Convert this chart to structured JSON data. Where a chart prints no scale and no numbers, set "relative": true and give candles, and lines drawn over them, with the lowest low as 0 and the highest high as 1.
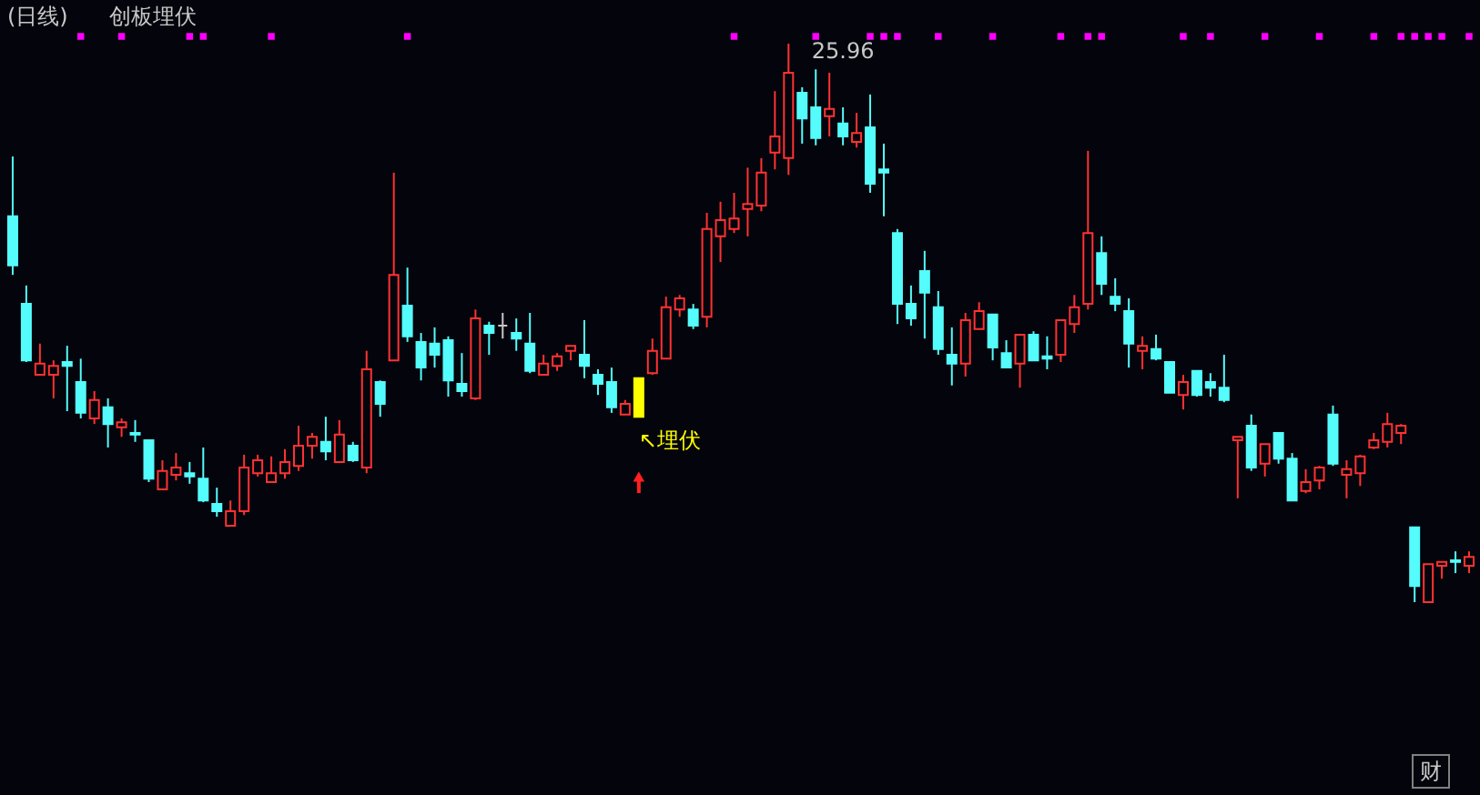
{
  "chart_data": {
    "type": "candlestick",
    "title": "(日线)",
    "subtitle": "创板埋伏",
    "relative": true,
    "categories": [
      null,
      null,
      null,
      null,
      null,
      null,
      null,
      null,
      null,
      null,
      null,
      null,
      null,
      null,
      null,
      null,
      null,
      null,
      null,
      null,
      null,
      null,
      null,
      null,
      null,
      null,
      null,
      null,
      null,
      null,
      null,
      null,
      null,
      null,
      null,
      null,
      null,
      null,
      null,
      null,
      null,
      null,
      null,
      null,
      null,
      null,
      null,
      null,
      null,
      null,
      null,
      null,
      null,
      null,
      null,
      null,
      null,
      null,
      null,
      null,
      null,
      null,
      null,
      null,
      null,
      null,
      null,
      null,
      null,
      null,
      null,
      null,
      null,
      null,
      null,
      null,
      null,
      null,
      null,
      null,
      null,
      null,
      null,
      null,
      null,
      null,
      null,
      null,
      null,
      null,
      null,
      null,
      null,
      null,
      null,
      null,
      null,
      null,
      null,
      null,
      null,
      null,
      null,
      null,
      null,
      null,
      null,
      null
    ],
    "ohlc": [
      [
        0.691,
        0.798,
        0.586,
        0.603
      ],
      [
        0.534,
        0.567,
        0.43,
        0.433
      ],
      [
        0.407,
        0.463,
        0.407,
        0.427
      ],
      [
        0.407,
        0.433,
        0.365,
        0.423
      ],
      [
        0.43,
        0.459,
        0.342,
        0.423
      ],
      [
        0.394,
        0.436,
        0.329,
        0.339
      ],
      [
        0.329,
        0.378,
        0.319,
        0.362
      ],
      [
        0.349,
        0.365,
        0.277,
        0.319
      ],
      [
        0.313,
        0.329,
        0.296,
        0.322
      ],
      [
        0.303,
        0.326,
        0.287,
        0.3
      ],
      [
        0.29,
        0.29,
        0.215,
        0.221
      ],
      [
        0.202,
        0.254,
        0.202,
        0.235
      ],
      [
        0.228,
        0.267,
        0.218,
        0.241
      ],
      [
        0.231,
        0.251,
        0.212,
        0.225
      ],
      [
        0.221,
        0.277,
        0.179,
        0.182
      ],
      [
        0.176,
        0.205,
        0.153,
        0.163
      ],
      [
        0.137,
        0.182,
        0.137,
        0.163
      ],
      [
        0.163,
        0.264,
        0.156,
        0.241
      ],
      [
        0.231,
        0.264,
        0.225,
        0.254
      ],
      [
        0.215,
        0.261,
        0.215,
        0.231
      ],
      [
        0.231,
        0.274,
        0.221,
        0.251
      ],
      [
        0.244,
        0.316,
        0.235,
        0.28
      ],
      [
        0.28,
        0.303,
        0.257,
        0.296
      ],
      [
        0.287,
        0.332,
        0.254,
        0.27
      ],
      [
        0.251,
        0.326,
        0.251,
        0.3
      ],
      [
        0.28,
        0.287,
        0.251,
        0.254
      ],
      [
        0.241,
        0.45,
        0.231,
        0.417
      ],
      [
        0.394,
        0.397,
        0.332,
        0.355
      ],
      [
        0.433,
        0.769,
        0.433,
        0.586
      ],
      [
        0.531,
        0.599,
        0.466,
        0.476
      ],
      [
        0.466,
        0.482,
        0.397,
        0.42
      ],
      [
        0.463,
        0.492,
        0.42,
        0.443
      ],
      [
        0.469,
        0.476,
        0.368,
        0.397
      ],
      [
        0.391,
        0.446,
        0.368,
        0.378
      ],
      [
        0.365,
        0.524,
        0.362,
        0.508
      ],
      [
        0.495,
        0.502,
        0.443,
        0.482
      ],
      [
        0.495,
        0.518,
        0.472,
        0.495
      ],
      [
        0.482,
        0.508,
        0.45,
        0.472
      ],
      [
        0.463,
        0.518,
        0.41,
        0.414
      ],
      [
        0.407,
        0.443,
        0.407,
        0.427
      ],
      [
        0.423,
        0.446,
        0.414,
        0.44
      ],
      [
        0.45,
        0.459,
        0.433,
        0.459
      ],
      [
        0.443,
        0.505,
        0.401,
        0.423
      ],
      [
        0.407,
        0.417,
        0.371,
        0.391
      ],
      [
        0.394,
        0.42,
        0.339,
        0.349
      ],
      [
        0.336,
        0.362,
        0.336,
        0.355
      ],
      [
        0.401,
        0.401,
        0.332,
        0.332
      ],
      [
        0.41,
        0.472,
        0.407,
        0.45
      ],
      [
        0.436,
        0.547,
        0.436,
        0.528
      ],
      [
        0.524,
        0.55,
        0.511,
        0.544
      ],
      [
        0.524,
        0.534,
        0.489,
        0.495
      ],
      [
        0.511,
        0.697,
        0.492,
        0.668
      ],
      [
        0.655,
        0.717,
        0.609,
        0.684
      ],
      [
        0.668,
        0.733,
        0.661,
        0.687
      ],
      [
        0.704,
        0.778,
        0.655,
        0.713
      ],
      [
        0.71,
        0.795,
        0.7,
        0.769
      ],
      [
        0.805,
        0.915,
        0.775,
        0.834
      ],
      [
        0.795,
        1,
        0.765,
        0.948
      ],
      [
        0.912,
        0.922,
        0.821,
        0.866
      ],
      [
        0.886,
        0.954,
        0.818,
        0.831
      ],
      [
        0.87,
        0.948,
        0.834,
        0.883
      ],
      [
        0.857,
        0.886,
        0.818,
        0.834
      ],
      [
        0.824,
        0.876,
        0.814,
        0.84
      ],
      [
        0.85,
        0.909,
        0.733,
        0.749
      ],
      [
        0.775,
        0.821,
        0.691,
        0.769
      ],
      [
        0.661,
        0.668,
        0.498,
        0.534
      ],
      [
        0.534,
        0.567,
        0.495,
        0.508
      ],
      [
        0.593,
        0.629,
        0.472,
        0.554
      ],
      [
        0.528,
        0.557,
        0.443,
        0.453
      ],
      [
        0.443,
        0.492,
        0.388,
        0.427
      ],
      [
        0.427,
        0.518,
        0.404,
        0.505
      ],
      [
        0.489,
        0.537,
        0.489,
        0.521
      ],
      [
        0.515,
        0.515,
        0.433,
        0.456
      ],
      [
        0.446,
        0.469,
        0.42,
        0.42
      ],
      [
        0.427,
        0.479,
        0.384,
        0.479
      ],
      [
        0.479,
        0.485,
        0.433,
        0.433
      ],
      [
        0.44,
        0.476,
        0.417,
        0.436
      ],
      [
        0.443,
        0.505,
        0.43,
        0.505
      ],
      [
        0.498,
        0.55,
        0.482,
        0.528
      ],
      [
        0.534,
        0.808,
        0.524,
        0.661
      ],
      [
        0.625,
        0.655,
        0.55,
        0.57
      ],
      [
        0.547,
        0.58,
        0.521,
        0.534
      ],
      [
        0.521,
        0.544,
        0.42,
        0.463
      ],
      [
        0.45,
        0.476,
        0.417,
        0.459
      ],
      [
        0.453,
        0.479,
        0.433,
        0.436
      ],
      [
        0.43,
        0.43,
        0.375,
        0.375
      ],
      [
        0.371,
        0.407,
        0.345,
        0.394
      ],
      [
        0.414,
        0.414,
        0.368,
        0.371
      ],
      [
        0.394,
        0.41,
        0.368,
        0.384
      ],
      [
        0.384,
        0.443,
        0.358,
        0.362
      ],
      [
        0.29,
        0.296,
        0.186,
        0.296
      ],
      [
        0.316,
        0.336,
        0.235,
        0.241
      ],
      [
        0.248,
        0.283,
        0.225,
        0.283
      ],
      [
        0.303,
        0.303,
        0.248,
        0.257
      ],
      [
        0.257,
        0.267,
        0.182,
        0.182
      ],
      [
        0.199,
        0.238,
        0.195,
        0.215
      ],
      [
        0.218,
        0.244,
        0.202,
        0.241
      ],
      [
        0.336,
        0.352,
        0.244,
        0.248
      ],
      [
        0.228,
        0.254,
        0.186,
        0.238
      ],
      [
        0.231,
        0.264,
        0.208,
        0.261
      ],
      [
        0.277,
        0.303,
        0.274,
        0.29
      ],
      [
        0.287,
        0.339,
        0.277,
        0.319
      ],
      [
        0.303,
        0.319,
        0.283,
        0.316
      ],
      [
        0.134,
        0.134,
        0,
        0.029
      ],
      [
        0,
        0.068,
        0,
        0.068
      ],
      [
        0.065,
        0.072,
        0.042,
        0.072
      ],
      [
        0.075,
        0.091,
        0.052,
        0.072
      ],
      [
        0.065,
        0.091,
        0.052,
        0.081
      ]
    ],
    "colors": [
      "#54fcfc",
      "#54fcfc",
      "#ff3232",
      "#ff3232",
      "#54fcfc",
      "#54fcfc",
      "#ff3232",
      "#54fcfc",
      "#ff3232",
      "#54fcfc",
      "#54fcfc",
      "#ff3232",
      "#ff3232",
      "#54fcfc",
      "#54fcfc",
      "#54fcfc",
      "#ff3232",
      "#ff3232",
      "#ff3232",
      "#ff3232",
      "#ff3232",
      "#ff3232",
      "#ff3232",
      "#54fcfc",
      "#ff3232",
      "#54fcfc",
      "#ff3232",
      "#54fcfc",
      "#ff3232",
      "#54fcfc",
      "#54fcfc",
      "#54fcfc",
      "#54fcfc",
      "#54fcfc",
      "#ff3232",
      "#54fcfc",
      "#c8c8c8",
      "#54fcfc",
      "#54fcfc",
      "#ff3232",
      "#ff3232",
      "#ff3232",
      "#54fcfc",
      "#54fcfc",
      "#54fcfc",
      "#ff3232",
      "#ffff00",
      "#ff3232",
      "#ff3232",
      "#ff3232",
      "#54fcfc",
      "#ff3232",
      "#ff3232",
      "#ff3232",
      "#ff3232",
      "#ff3232",
      "#ff3232",
      "#ff3232",
      "#54fcfc",
      "#54fcfc",
      "#ff3232",
      "#54fcfc",
      "#ff3232",
      "#54fcfc",
      "#54fcfc",
      "#54fcfc",
      "#54fcfc",
      "#54fcfc",
      "#54fcfc",
      "#54fcfc",
      "#ff3232",
      "#ff3232",
      "#54fcfc",
      "#54fcfc",
      "#ff3232",
      "#54fcfc",
      "#54fcfc",
      "#ff3232",
      "#ff3232",
      "#ff3232",
      "#54fcfc",
      "#54fcfc",
      "#54fcfc",
      "#ff3232",
      "#54fcfc",
      "#54fcfc",
      "#ff3232",
      "#54fcfc",
      "#54fcfc",
      "#54fcfc",
      "#ff3232",
      "#54fcfc",
      "#ff3232",
      "#54fcfc",
      "#54fcfc",
      "#ff3232",
      "#ff3232",
      "#54fcfc",
      "#ff3232",
      "#ff3232",
      "#ff3232",
      "#ff3232",
      "#ff3232",
      "#54fcfc",
      "#ff3232",
      "#ff3232",
      "#54fcfc",
      "#ff3232"
    ],
    "series": [
      {
        "type": "scatter",
        "marker": "square",
        "color": "#ff00ff",
        "values": [
          null,
          null,
          null,
          null,
          null,
          1.013,
          null,
          null,
          1.013,
          null,
          null,
          null,
          null,
          1.013,
          1.013,
          null,
          null,
          null,
          null,
          1.013,
          null,
          null,
          null,
          null,
          null,
          null,
          null,
          null,
          null,
          1.013,
          null,
          null,
          null,
          null,
          null,
          null,
          null,
          null,
          null,
          null,
          null,
          null,
          null,
          null,
          null,
          null,
          null,
          null,
          null,
          null,
          null,
          null,
          null,
          1.013,
          null,
          null,
          null,
          null,
          null,
          1.013,
          null,
          null,
          null,
          1.013,
          1.013,
          1.013,
          null,
          null,
          1.013,
          null,
          null,
          null,
          1.013,
          null,
          null,
          null,
          null,
          1.013,
          null,
          1.013,
          1.013,
          null,
          null,
          null,
          null,
          null,
          1.013,
          null,
          1.013,
          null,
          null,
          null,
          1.013,
          null,
          null,
          null,
          1.013,
          null,
          null,
          null,
          1.013,
          null,
          1.013,
          1.013,
          1.013,
          1.013,
          null,
          1.013
        ]
      }
    ],
    "annotations": [
      "25.96",
      "↖埋伏",
      "财"
    ]
  }
}
